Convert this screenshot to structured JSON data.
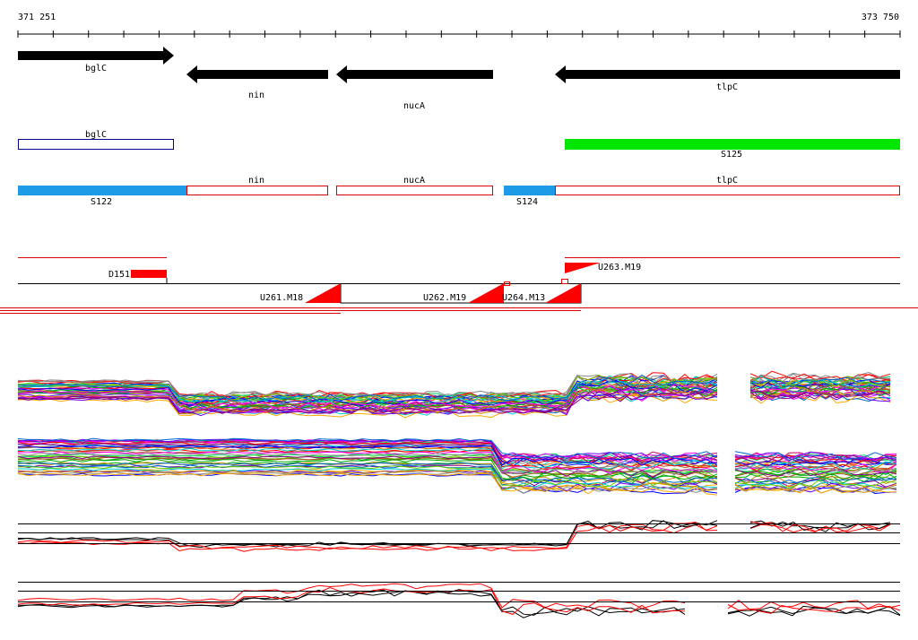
{
  "ruler": {
    "start": "371 251",
    "end": "373 750"
  },
  "genes": [
    "bglC",
    "nin",
    "nucA",
    "tlpC"
  ],
  "row2": {
    "gene": "bglC",
    "segment": "S125"
  },
  "row3": {
    "genes": [
      "nin",
      "nucA",
      "tlpC"
    ],
    "segments": [
      "S122",
      "S124"
    ]
  },
  "features": [
    "D151",
    "U263.M19",
    "U261.M18",
    "U262.M19",
    "U264.M13"
  ]
}
